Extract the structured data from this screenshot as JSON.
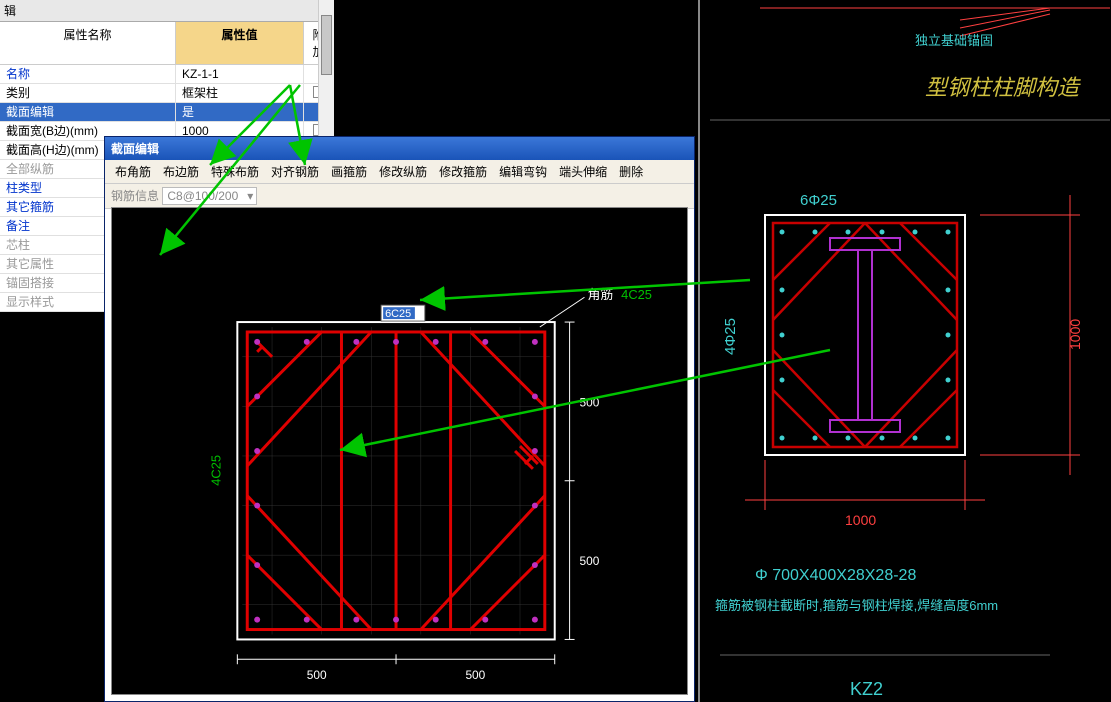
{
  "tab_label": "辑",
  "prop_header": {
    "name": "属性名称",
    "value": "属性值",
    "extra": "附加"
  },
  "rows": [
    {
      "name": "名称",
      "val": "KZ-1-1",
      "blue": true,
      "cb": false
    },
    {
      "name": "类别",
      "val": "框架柱",
      "cb": true
    },
    {
      "name": "截面编辑",
      "val": "是",
      "sel": true,
      "cb": false
    },
    {
      "name": "截面宽(B边)(mm)",
      "val": "1000",
      "cb": true
    },
    {
      "name": "截面高(H边)(mm)",
      "val": "",
      "cb": false
    },
    {
      "name": "全部纵筋",
      "val": "",
      "gray": true,
      "cb": false
    },
    {
      "name": "柱类型",
      "val": "",
      "blue": true,
      "cb": false
    },
    {
      "name": "其它箍筋",
      "val": "",
      "blue": true,
      "cb": false
    },
    {
      "name": "备注",
      "val": "",
      "blue": true,
      "cb": false
    },
    {
      "name": "芯柱",
      "val": "",
      "gray": true,
      "cb": false
    },
    {
      "name": "其它属性",
      "val": "",
      "gray": true,
      "cb": false
    },
    {
      "name": "锚固搭接",
      "val": "",
      "gray": true,
      "cb": false
    },
    {
      "name": "显示样式",
      "val": "",
      "gray": true,
      "cb": false
    }
  ],
  "editor": {
    "title": "截面编辑",
    "tools": [
      "布角筋",
      "布边筋",
      "特殊布筋",
      "对齐钢筋",
      "画箍筋",
      "修改纵筋",
      "修改箍筋",
      "编辑弯钩",
      "端头伸缩",
      "删除"
    ],
    "info_label": "钢筋信息",
    "info_value": "C8@100/200",
    "corner_label": "角筋",
    "corner_val": "4C25",
    "edit_val": "6C25",
    "left_label": "4C25",
    "dim_h": "500",
    "dim_v": "500",
    "colors": {
      "rebar": "#e00000",
      "outline": "#ffffff",
      "grid": "#333333",
      "stirrup": "#e00000",
      "dim": "#ffffff",
      "input_bg": "#ffffff",
      "input_sel": "#316ac5"
    }
  },
  "cad": {
    "title1": "独立基础锚固",
    "title2": "型钢柱柱脚构造",
    "top_label": "6Φ25",
    "left_label": "4Φ25",
    "bottom_dim": "1000",
    "right_dim": "1000",
    "spec": "Φ 700X400X28X28-28",
    "note": "箍筋被钢柱截断时,箍筋与钢柱焊接,焊缝高度6mm",
    "bottom_label": "KZ2",
    "colors": {
      "bg": "#000000",
      "outline": "#ffffff",
      "rebar": "#c80000",
      "steel": "#b030d0",
      "text_cyan": "#40d0d0",
      "text_yellow": "#d0c040",
      "dim_red": "#ff4040"
    }
  },
  "arrows": {
    "color": "#00c400"
  }
}
